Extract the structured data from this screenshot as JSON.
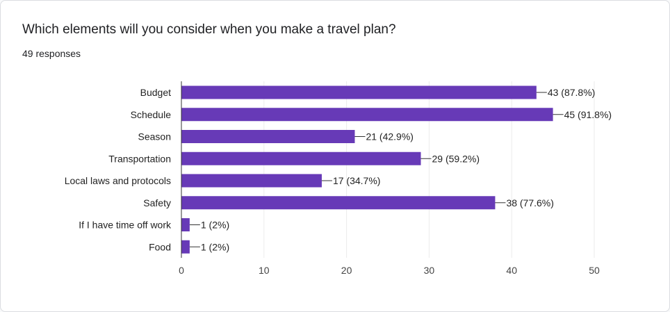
{
  "question": {
    "title": "Which elements will you consider when you make a travel plan?",
    "responses": "49 responses"
  },
  "colors": {
    "bar": "#673ab7",
    "grid": "#ebebeb",
    "axis": "#333333"
  },
  "chart_data": {
    "type": "bar",
    "orientation": "horizontal",
    "categories": [
      "Budget",
      "Schedule",
      "Season",
      "Transportation",
      "Local laws and protocols",
      "Safety",
      "If I have time off work",
      "Food"
    ],
    "values": [
      43,
      45,
      21,
      29,
      17,
      38,
      1,
      1
    ],
    "data_labels": [
      "43 (87.8%)",
      "45 (91.8%)",
      "21 (42.9%)",
      "29 (59.2%)",
      "17 (34.7%)",
      "38 (77.6%)",
      "1 (2%)",
      "1 (2%)"
    ],
    "xlim": [
      0,
      50
    ],
    "xticks": [
      0,
      10,
      20,
      30,
      40,
      50
    ],
    "grid": true,
    "legend": "none"
  }
}
